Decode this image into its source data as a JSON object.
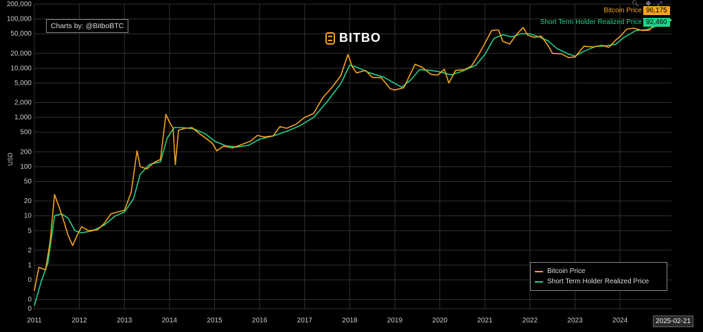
{
  "credit": "Charts by: @BitboBTC",
  "brand": "BITBO",
  "date_badge": "2025-02-21",
  "last_values": {
    "price_label": "Bitcoin Price",
    "price_value": "96,175",
    "sthrp_label": "Short Term Holder Realized Price",
    "sthrp_value": "92,460"
  },
  "toolbar": {
    "zoom_icon": "magnifier-icon",
    "pan_icon": "pan-icon",
    "reset_icon": "reset-icon"
  },
  "colors": {
    "price": "#f7a51c",
    "sthrp": "#1fd38a",
    "grid": "#333333",
    "background": "#000000"
  },
  "chart_data": {
    "type": "line",
    "title": "",
    "xlabel": "",
    "ylabel": "USD",
    "y_scale": "log",
    "grid": true,
    "legend_position": "bottom-right",
    "y_ticks": [
      "200,000",
      "100,000",
      "50,000",
      "20,000",
      "10,000",
      "5,000",
      "2,000",
      "1,000",
      "500",
      "200",
      "100",
      "50",
      "20",
      "10",
      "5",
      "2",
      "1",
      "0",
      "0",
      "0"
    ],
    "x_ticks": [
      "2011",
      "2012",
      "2013",
      "2014",
      "2015",
      "2016",
      "2017",
      "2018",
      "2019",
      "2020",
      "2021",
      "2022",
      "2023",
      "2024"
    ],
    "series": [
      {
        "name": "Bitcoin Price",
        "color": "#f7a51c",
        "points": [
          [
            2011.0,
            0.3
          ],
          [
            2011.1,
            0.9
          ],
          [
            2011.25,
            0.8
          ],
          [
            2011.35,
            3
          ],
          [
            2011.45,
            27
          ],
          [
            2011.55,
            15
          ],
          [
            2011.65,
            8
          ],
          [
            2011.75,
            4
          ],
          [
            2011.85,
            2.5
          ],
          [
            2011.95,
            4
          ],
          [
            2012.05,
            6
          ],
          [
            2012.2,
            5
          ],
          [
            2012.4,
            5.2
          ],
          [
            2012.55,
            7
          ],
          [
            2012.7,
            11
          ],
          [
            2012.85,
            12
          ],
          [
            2013.0,
            13
          ],
          [
            2013.15,
            30
          ],
          [
            2013.28,
            210
          ],
          [
            2013.35,
            100
          ],
          [
            2013.5,
            90
          ],
          [
            2013.65,
            120
          ],
          [
            2013.8,
            140
          ],
          [
            2013.92,
            1150
          ],
          [
            2014.0,
            800
          ],
          [
            2014.08,
            600
          ],
          [
            2014.13,
            110
          ],
          [
            2014.2,
            550
          ],
          [
            2014.35,
            600
          ],
          [
            2014.5,
            620
          ],
          [
            2014.65,
            480
          ],
          [
            2014.8,
            380
          ],
          [
            2014.95,
            300
          ],
          [
            2015.05,
            210
          ],
          [
            2015.2,
            260
          ],
          [
            2015.4,
            240
          ],
          [
            2015.6,
            280
          ],
          [
            2015.8,
            330
          ],
          [
            2015.95,
            430
          ],
          [
            2016.1,
            400
          ],
          [
            2016.3,
            420
          ],
          [
            2016.45,
            650
          ],
          [
            2016.6,
            600
          ],
          [
            2016.8,
            720
          ],
          [
            2017.0,
            1000
          ],
          [
            2017.2,
            1200
          ],
          [
            2017.4,
            2500
          ],
          [
            2017.6,
            4000
          ],
          [
            2017.8,
            7000
          ],
          [
            2017.96,
            19000
          ],
          [
            2018.05,
            11000
          ],
          [
            2018.15,
            8000
          ],
          [
            2018.35,
            9000
          ],
          [
            2018.5,
            6500
          ],
          [
            2018.7,
            6400
          ],
          [
            2018.9,
            3800
          ],
          [
            2019.0,
            3600
          ],
          [
            2019.2,
            4000
          ],
          [
            2019.45,
            12000
          ],
          [
            2019.6,
            10500
          ],
          [
            2019.8,
            7500
          ],
          [
            2019.95,
            7200
          ],
          [
            2020.1,
            9500
          ],
          [
            2020.2,
            5000
          ],
          [
            2020.35,
            9000
          ],
          [
            2020.55,
            9300
          ],
          [
            2020.7,
            11000
          ],
          [
            2020.85,
            18000
          ],
          [
            2021.0,
            32000
          ],
          [
            2021.15,
            58000
          ],
          [
            2021.3,
            60000
          ],
          [
            2021.4,
            35000
          ],
          [
            2021.55,
            31000
          ],
          [
            2021.7,
            48000
          ],
          [
            2021.85,
            67000
          ],
          [
            2021.95,
            47000
          ],
          [
            2022.1,
            42000
          ],
          [
            2022.25,
            45000
          ],
          [
            2022.4,
            29000
          ],
          [
            2022.5,
            20000
          ],
          [
            2022.7,
            19500
          ],
          [
            2022.85,
            16500
          ],
          [
            2023.0,
            16800
          ],
          [
            2023.2,
            28000
          ],
          [
            2023.4,
            27000
          ],
          [
            2023.6,
            29000
          ],
          [
            2023.75,
            26500
          ],
          [
            2023.9,
            37000
          ],
          [
            2024.0,
            44000
          ],
          [
            2024.15,
            62000
          ],
          [
            2024.3,
            65000
          ],
          [
            2024.5,
            58000
          ],
          [
            2024.65,
            59000
          ],
          [
            2024.85,
            96000
          ],
          [
            2025.0,
            98000
          ],
          [
            2025.14,
            96175
          ]
        ]
      },
      {
        "name": "Short Term Holder Realized Price",
        "color": "#1fd38a",
        "points": [
          [
            2011.0,
            0.15
          ],
          [
            2011.15,
            0.45
          ],
          [
            2011.3,
            1.1
          ],
          [
            2011.45,
            10
          ],
          [
            2011.6,
            11
          ],
          [
            2011.75,
            9
          ],
          [
            2011.9,
            5
          ],
          [
            2012.05,
            4.5
          ],
          [
            2012.3,
            5
          ],
          [
            2012.55,
            6.5
          ],
          [
            2012.8,
            10
          ],
          [
            2013.0,
            12
          ],
          [
            2013.2,
            22
          ],
          [
            2013.35,
            70
          ],
          [
            2013.55,
            110
          ],
          [
            2013.8,
            125
          ],
          [
            2013.95,
            380
          ],
          [
            2014.1,
            620
          ],
          [
            2014.3,
            620
          ],
          [
            2014.55,
            580
          ],
          [
            2014.8,
            460
          ],
          [
            2015.0,
            330
          ],
          [
            2015.25,
            265
          ],
          [
            2015.5,
            250
          ],
          [
            2015.75,
            270
          ],
          [
            2016.0,
            360
          ],
          [
            2016.3,
            420
          ],
          [
            2016.6,
            520
          ],
          [
            2016.9,
            680
          ],
          [
            2017.2,
            1000
          ],
          [
            2017.5,
            2100
          ],
          [
            2017.8,
            4800
          ],
          [
            2018.0,
            11500
          ],
          [
            2018.15,
            10500
          ],
          [
            2018.45,
            8000
          ],
          [
            2018.75,
            6600
          ],
          [
            2018.95,
            5200
          ],
          [
            2019.15,
            4100
          ],
          [
            2019.35,
            5700
          ],
          [
            2019.55,
            9300
          ],
          [
            2019.8,
            9000
          ],
          [
            2020.0,
            8400
          ],
          [
            2020.25,
            7300
          ],
          [
            2020.5,
            8700
          ],
          [
            2020.8,
            11500
          ],
          [
            2021.0,
            19000
          ],
          [
            2021.2,
            40000
          ],
          [
            2021.4,
            48000
          ],
          [
            2021.6,
            43000
          ],
          [
            2021.8,
            50000
          ],
          [
            2022.0,
            50000
          ],
          [
            2022.2,
            43000
          ],
          [
            2022.4,
            36000
          ],
          [
            2022.6,
            25000
          ],
          [
            2022.85,
            19500
          ],
          [
            2023.0,
            17500
          ],
          [
            2023.2,
            22000
          ],
          [
            2023.45,
            27500
          ],
          [
            2023.7,
            28500
          ],
          [
            2023.9,
            30500
          ],
          [
            2024.1,
            43000
          ],
          [
            2024.35,
            58000
          ],
          [
            2024.6,
            61000
          ],
          [
            2024.85,
            74000
          ],
          [
            2025.0,
            88000
          ],
          [
            2025.14,
            92460
          ]
        ]
      }
    ]
  }
}
